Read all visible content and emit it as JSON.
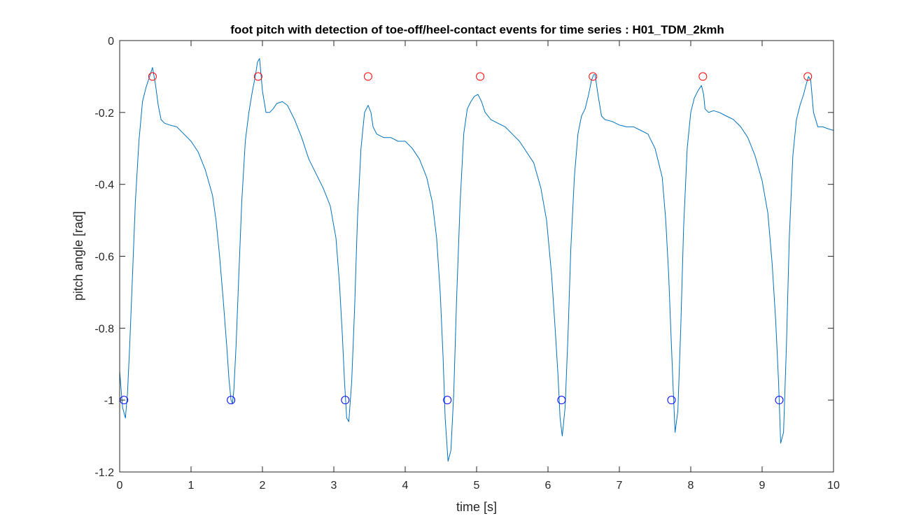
{
  "chart_data": {
    "type": "line",
    "title": "foot pitch with detection of toe-off/heel-contact events for time series : H01_TDM_2kmh",
    "xlabel": "time [s]",
    "ylabel": "pitch angle [rad]",
    "xlim": [
      0,
      10
    ],
    "ylim": [
      -1.2,
      0
    ],
    "x_ticks": [
      0,
      1,
      2,
      3,
      4,
      5,
      6,
      7,
      8,
      9,
      10
    ],
    "y_ticks": [
      0,
      -0.2,
      -0.4,
      -0.6,
      -0.8,
      -1,
      -1.2
    ],
    "x_tick_labels": [
      "0",
      "1",
      "2",
      "3",
      "4",
      "5",
      "6",
      "7",
      "8",
      "9",
      "10"
    ],
    "y_tick_labels": [
      "0",
      "-0.2",
      "-0.4",
      "-0.6",
      "-0.8",
      "-1",
      "-1.2"
    ],
    "grid": false,
    "legend": "none",
    "series": [
      {
        "color": "#0072bd",
        "x": [
          0.0,
          0.04,
          0.08,
          0.11,
          0.14,
          0.18,
          0.22,
          0.27,
          0.32,
          0.37,
          0.42,
          0.46,
          0.5,
          0.54,
          0.58,
          0.63,
          0.7,
          0.8,
          0.9,
          1.0,
          1.1,
          1.2,
          1.3,
          1.35,
          1.4,
          1.45,
          1.5,
          1.53,
          1.56,
          1.58,
          1.6,
          1.63,
          1.67,
          1.71,
          1.76,
          1.81,
          1.86,
          1.9,
          1.93,
          1.96,
          2.0,
          2.05,
          2.1,
          2.15,
          2.2,
          2.28,
          2.35,
          2.45,
          2.55,
          2.65,
          2.75,
          2.85,
          2.95,
          3.03,
          3.08,
          3.12,
          3.15,
          3.18,
          3.21,
          3.25,
          3.29,
          3.33,
          3.38,
          3.43,
          3.48,
          3.52,
          3.55,
          3.6,
          3.7,
          3.8,
          3.9,
          4.0,
          4.1,
          4.2,
          4.3,
          4.38,
          4.44,
          4.49,
          4.53,
          4.56,
          4.6,
          4.64,
          4.68,
          4.72,
          4.77,
          4.82,
          4.87,
          4.92,
          4.97,
          5.02,
          5.07,
          5.12,
          5.2,
          5.3,
          5.4,
          5.5,
          5.6,
          5.7,
          5.8,
          5.9,
          5.98,
          6.05,
          6.1,
          6.14,
          6.17,
          6.2,
          6.24,
          6.28,
          6.32,
          6.37,
          6.42,
          6.47,
          6.52,
          6.57,
          6.61,
          6.64,
          6.66,
          6.7,
          6.75,
          6.8,
          6.9,
          7.0,
          7.1,
          7.2,
          7.3,
          7.4,
          7.5,
          7.6,
          7.65,
          7.69,
          7.72,
          7.75,
          7.78,
          7.82,
          7.86,
          7.9,
          7.95,
          8.0,
          8.05,
          8.1,
          8.15,
          8.18,
          8.2,
          8.25,
          8.32,
          8.4,
          8.5,
          8.6,
          8.7,
          8.8,
          8.9,
          9.0,
          9.08,
          9.14,
          9.19,
          9.23,
          9.26,
          9.3,
          9.34,
          9.38,
          9.43,
          9.48,
          9.53,
          9.58,
          9.62,
          9.65,
          9.68,
          9.72,
          9.78,
          9.85,
          9.92,
          10.0
        ],
        "y": [
          -0.92,
          -1.02,
          -1.05,
          -0.98,
          -0.85,
          -0.65,
          -0.45,
          -0.28,
          -0.17,
          -0.13,
          -0.1,
          -0.075,
          -0.12,
          -0.18,
          -0.22,
          -0.23,
          -0.235,
          -0.24,
          -0.26,
          -0.28,
          -0.31,
          -0.36,
          -0.43,
          -0.5,
          -0.6,
          -0.72,
          -0.85,
          -0.94,
          -1.0,
          -1.01,
          -0.97,
          -0.85,
          -0.65,
          -0.45,
          -0.28,
          -0.2,
          -0.14,
          -0.1,
          -0.06,
          -0.05,
          -0.14,
          -0.2,
          -0.2,
          -0.19,
          -0.175,
          -0.17,
          -0.18,
          -0.22,
          -0.27,
          -0.33,
          -0.37,
          -0.41,
          -0.46,
          -0.55,
          -0.68,
          -0.82,
          -0.95,
          -1.05,
          -1.06,
          -0.95,
          -0.75,
          -0.5,
          -0.3,
          -0.2,
          -0.18,
          -0.2,
          -0.24,
          -0.26,
          -0.27,
          -0.27,
          -0.28,
          -0.28,
          -0.3,
          -0.33,
          -0.38,
          -0.45,
          -0.55,
          -0.7,
          -0.88,
          -1.05,
          -1.17,
          -1.14,
          -0.98,
          -0.72,
          -0.45,
          -0.26,
          -0.19,
          -0.17,
          -0.155,
          -0.15,
          -0.17,
          -0.2,
          -0.22,
          -0.23,
          -0.24,
          -0.26,
          -0.28,
          -0.31,
          -0.34,
          -0.41,
          -0.5,
          -0.65,
          -0.8,
          -0.93,
          -1.05,
          -1.1,
          -1.02,
          -0.82,
          -0.58,
          -0.38,
          -0.26,
          -0.21,
          -0.19,
          -0.15,
          -0.11,
          -0.095,
          -0.095,
          -0.15,
          -0.21,
          -0.22,
          -0.225,
          -0.235,
          -0.24,
          -0.24,
          -0.25,
          -0.26,
          -0.3,
          -0.38,
          -0.5,
          -0.65,
          -0.8,
          -0.95,
          -1.09,
          -1.03,
          -0.8,
          -0.52,
          -0.3,
          -0.2,
          -0.16,
          -0.14,
          -0.125,
          -0.15,
          -0.19,
          -0.2,
          -0.195,
          -0.2,
          -0.21,
          -0.22,
          -0.24,
          -0.27,
          -0.32,
          -0.39,
          -0.48,
          -0.62,
          -0.78,
          -0.95,
          -1.12,
          -1.09,
          -0.85,
          -0.55,
          -0.32,
          -0.22,
          -0.18,
          -0.15,
          -0.12,
          -0.1,
          -0.11,
          -0.2,
          -0.24,
          -0.24,
          -0.245,
          -0.25
        ]
      }
    ],
    "markers": [
      {
        "color": "#ff0000",
        "shape": "circle",
        "x": [
          0.46,
          1.94,
          3.48,
          5.05,
          6.63,
          8.17,
          9.64
        ],
        "y": [
          -0.1,
          -0.1,
          -0.1,
          -0.1,
          -0.1,
          -0.1,
          -0.1
        ]
      },
      {
        "color": "#0000ff",
        "shape": "circle",
        "x": [
          0.06,
          1.56,
          3.16,
          4.59,
          6.19,
          7.73,
          9.24
        ],
        "y": [
          -1.0,
          -1.0,
          -1.0,
          -1.0,
          -1.0,
          -1.0,
          -1.0
        ]
      }
    ]
  }
}
